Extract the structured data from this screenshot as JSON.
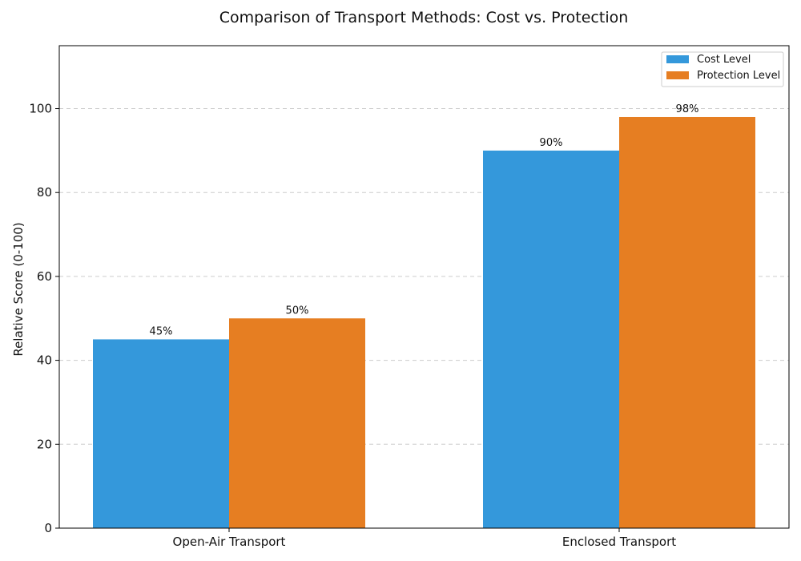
{
  "chart_data": {
    "type": "bar",
    "title": "Comparison of Transport Methods: Cost vs. Protection",
    "xlabel": "",
    "ylabel": "Relative Score (0-100)",
    "categories": [
      "Open-Air Transport",
      "Enclosed Transport"
    ],
    "series": [
      {
        "name": "Cost Level",
        "color": "#3498db",
        "values": [
          45,
          90
        ],
        "labels": [
          "45%",
          "90%"
        ]
      },
      {
        "name": "Protection Level",
        "color": "#e67e22",
        "values": [
          50,
          98
        ],
        "labels": [
          "50%",
          "98%"
        ]
      }
    ],
    "ylim": [
      0,
      115
    ],
    "yticks": [
      0,
      20,
      40,
      60,
      80,
      100
    ],
    "grid": true,
    "legend_position": "top-right"
  }
}
